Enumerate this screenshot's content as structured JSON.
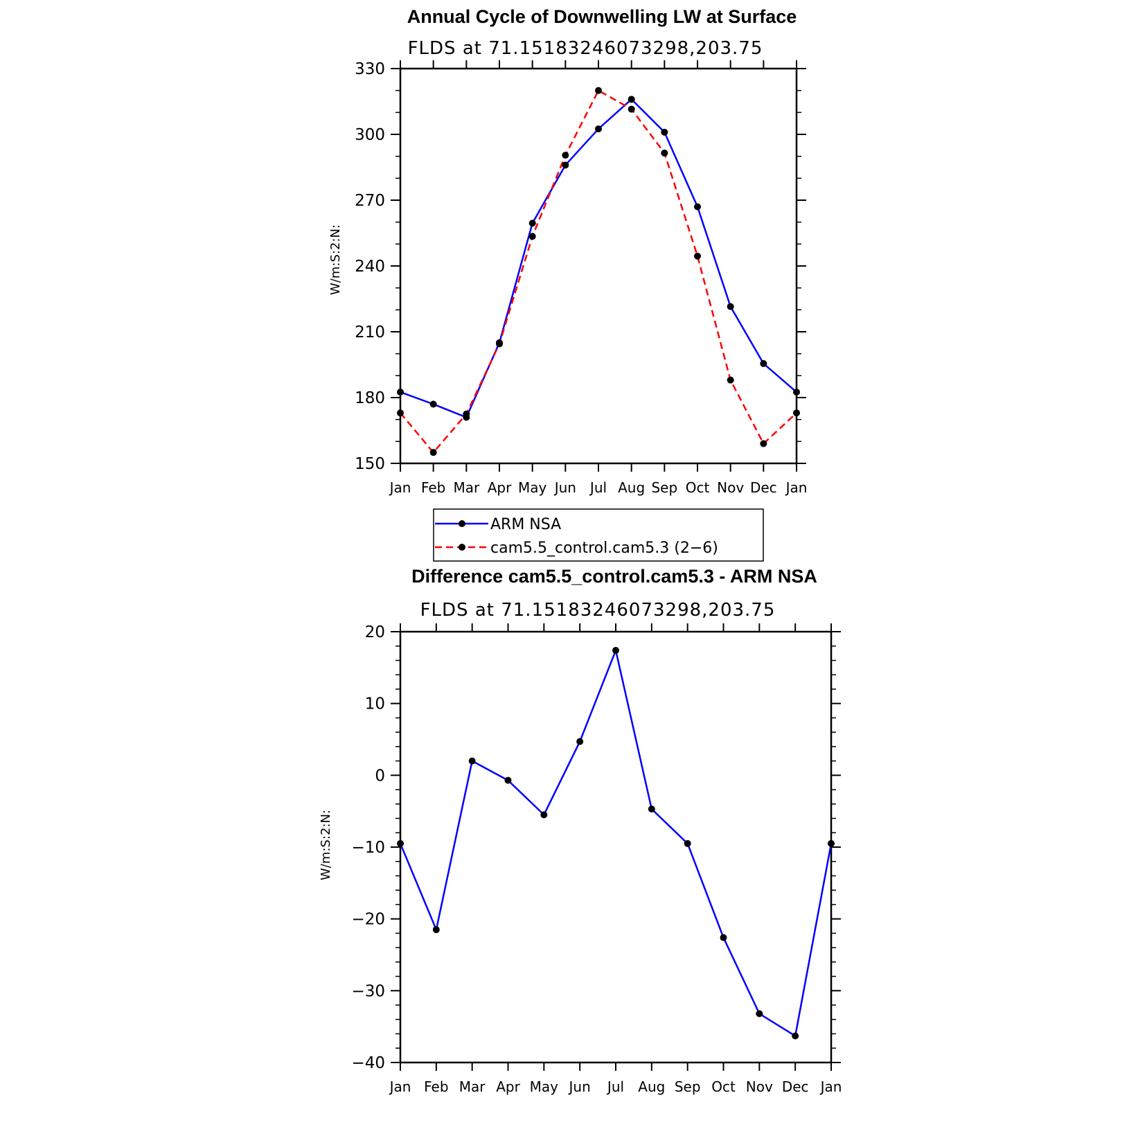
{
  "chart_data": [
    {
      "type": "line",
      "title": "Annual Cycle of Downwelling LW at Surface",
      "subtitle": "FLDS at 71.15183246073298,203.75",
      "ylabel": "W/m:S:2:N:",
      "xlabel": "",
      "categories": [
        "Jan",
        "Feb",
        "Mar",
        "Apr",
        "May",
        "Jun",
        "Jul",
        "Aug",
        "Sep",
        "Oct",
        "Nov",
        "Dec",
        "Jan"
      ],
      "ylim": [
        150,
        330
      ],
      "yticks": [
        150,
        180,
        210,
        240,
        270,
        300,
        330
      ],
      "series": [
        {
          "name": "ARM NSA",
          "color": "#0000ff",
          "style": "solid",
          "values": [
            182.5,
            177,
            171,
            205,
            259.5,
            286,
            302.5,
            316,
            301,
            267,
            221.5,
            195.5,
            182.5
          ]
        },
        {
          "name": "cam5.5_control.cam5.3 (2−6)",
          "color": "#ff0000",
          "style": "dashed",
          "values": [
            173,
            155,
            172.5,
            204.5,
            253.5,
            290.5,
            320,
            311.5,
            291.5,
            244.5,
            188,
            159,
            173
          ]
        }
      ],
      "legend": "below"
    },
    {
      "type": "line",
      "title": "Difference cam5.5_control.cam5.3 - ARM NSA",
      "subtitle": "FLDS at 71.15183246073298,203.75",
      "ylabel": "W/m:S:2:N:",
      "xlabel": "",
      "categories": [
        "Jan",
        "Feb",
        "Mar",
        "Apr",
        "May",
        "Jun",
        "Jul",
        "Aug",
        "Sep",
        "Oct",
        "Nov",
        "Dec",
        "Jan"
      ],
      "ylim": [
        -40,
        20
      ],
      "yticks": [
        -40,
        -30,
        -20,
        -10,
        0,
        10,
        20
      ],
      "ytick_labels": [
        "−40",
        "−30",
        "−20",
        "−10",
        "0",
        "10",
        "20"
      ],
      "series": [
        {
          "color": "#0000ff",
          "style": "solid",
          "values": [
            -9.5,
            -21.5,
            2,
            -0.7,
            -5.5,
            4.7,
            17.4,
            -4.7,
            -9.5,
            -22.6,
            -33.2,
            -36.3,
            -9.5
          ]
        }
      ]
    }
  ]
}
